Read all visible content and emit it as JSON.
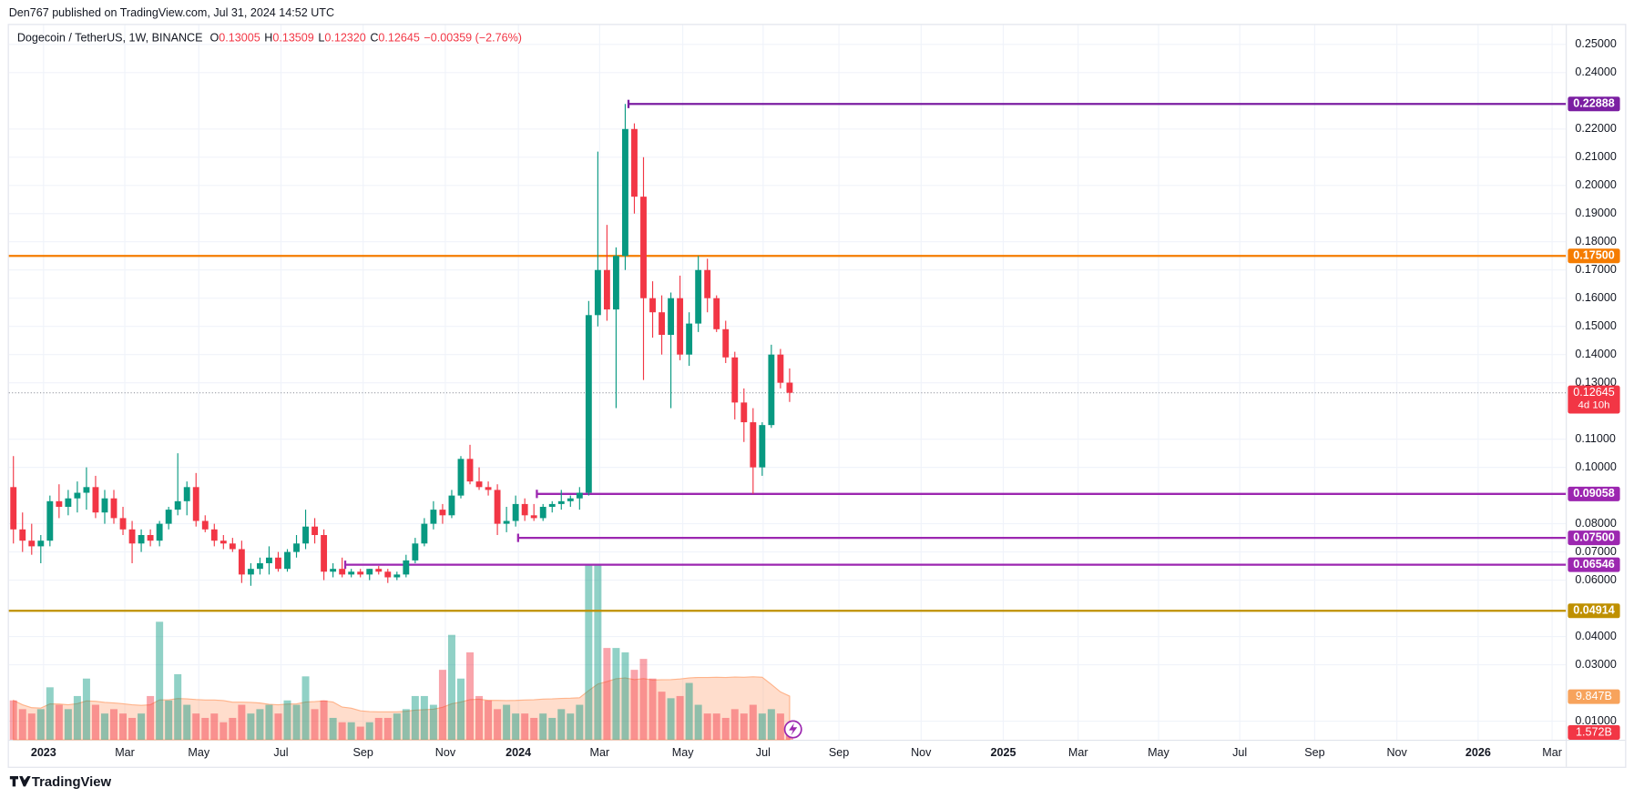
{
  "header": {
    "text": "Den767 published on TradingView.com, Jul 31, 2024 14:52 UTC"
  },
  "footer": {
    "brand": "TradingView"
  },
  "chart_data": {
    "type": "candlestick",
    "symbol": "Dogecoin / TetherUS, 1W, BINANCE",
    "legend": [
      {
        "label": "O",
        "value": "0.13005"
      },
      {
        "label": "H",
        "value": "0.13509"
      },
      {
        "label": "L",
        "value": "0.12320"
      },
      {
        "label": "C",
        "value": "0.12645"
      }
    ],
    "change": "−0.00359 (−2.76%)",
    "up_color": "#089981",
    "down_color": "#f23645",
    "open": [
      0.093,
      0.078,
      0.074,
      0.072,
      0.074,
      0.088,
      0.086,
      0.089,
      0.091,
      0.093,
      0.084,
      0.089,
      0.082,
      0.078,
      0.073,
      0.076,
      0.074,
      0.08,
      0.085,
      0.088,
      0.093,
      0.081,
      0.078,
      0.074,
      0.073,
      0.071,
      0.062,
      0.064,
      0.066,
      0.068,
      0.064,
      0.07,
      0.073,
      0.079,
      0.076,
      0.063,
      0.064,
      0.062,
      0.063,
      0.062,
      0.064,
      0.063,
      0.061,
      0.062,
      0.067,
      0.073,
      0.08,
      0.085,
      0.083,
      0.09,
      0.103,
      0.095,
      0.093,
      0.092,
      0.08,
      0.081,
      0.087,
      0.083,
      0.082,
      0.086,
      0.087,
      0.088,
      0.089,
      0.091,
      0.154,
      0.17,
      0.156,
      0.175,
      0.22,
      0.196,
      0.16,
      0.155,
      0.147,
      0.16,
      0.14,
      0.151,
      0.17,
      0.16,
      0.149,
      0.139,
      0.123,
      0.116,
      0.1,
      0.115,
      0.14,
      0.13005
    ],
    "high": [
      0.104,
      0.084,
      0.08,
      0.076,
      0.09,
      0.094,
      0.092,
      0.095,
      0.1,
      0.097,
      0.092,
      0.092,
      0.086,
      0.081,
      0.078,
      0.078,
      0.081,
      0.086,
      0.105,
      0.095,
      0.098,
      0.083,
      0.08,
      0.076,
      0.075,
      0.074,
      0.066,
      0.068,
      0.072,
      0.07,
      0.071,
      0.076,
      0.085,
      0.082,
      0.078,
      0.066,
      0.068,
      0.064,
      0.064,
      0.064,
      0.065,
      0.064,
      0.063,
      0.069,
      0.075,
      0.082,
      0.088,
      0.087,
      0.092,
      0.104,
      0.108,
      0.1,
      0.095,
      0.094,
      0.086,
      0.09,
      0.089,
      0.087,
      0.087,
      0.088,
      0.092,
      0.09,
      0.093,
      0.159,
      0.212,
      0.186,
      0.178,
      0.22888,
      0.222,
      0.21,
      0.166,
      0.161,
      0.162,
      0.168,
      0.155,
      0.175,
      0.174,
      0.161,
      0.152,
      0.141,
      0.128,
      0.121,
      0.116,
      0.1435,
      0.142,
      0.13509
    ],
    "low": [
      0.073,
      0.07,
      0.069,
      0.066,
      0.072,
      0.082,
      0.083,
      0.084,
      0.085,
      0.082,
      0.08,
      0.08,
      0.076,
      0.066,
      0.07,
      0.072,
      0.072,
      0.078,
      0.083,
      0.083,
      0.079,
      0.077,
      0.072,
      0.071,
      0.07,
      0.059,
      0.058,
      0.062,
      0.062,
      0.063,
      0.063,
      0.068,
      0.071,
      0.073,
      0.06,
      0.061,
      0.061,
      0.061,
      0.061,
      0.06,
      0.062,
      0.059,
      0.06,
      0.061,
      0.066,
      0.072,
      0.078,
      0.08,
      0.082,
      0.089,
      0.094,
      0.092,
      0.09,
      0.076,
      0.077,
      0.079,
      0.081,
      0.081,
      0.081,
      0.084,
      0.085,
      0.086,
      0.085,
      0.09,
      0.15,
      0.152,
      0.121,
      0.17,
      0.19,
      0.131,
      0.146,
      0.14,
      0.121,
      0.138,
      0.136,
      0.148,
      0.155,
      0.148,
      0.137,
      0.117,
      0.109,
      0.0906,
      0.097,
      0.114,
      0.128,
      0.1232
    ],
    "close": [
      0.078,
      0.074,
      0.072,
      0.074,
      0.088,
      0.086,
      0.089,
      0.091,
      0.093,
      0.084,
      0.089,
      0.082,
      0.078,
      0.073,
      0.076,
      0.074,
      0.08,
      0.085,
      0.088,
      0.093,
      0.081,
      0.078,
      0.074,
      0.073,
      0.071,
      0.062,
      0.064,
      0.066,
      0.068,
      0.064,
      0.07,
      0.073,
      0.079,
      0.076,
      0.063,
      0.064,
      0.062,
      0.063,
      0.062,
      0.064,
      0.063,
      0.061,
      0.062,
      0.067,
      0.073,
      0.08,
      0.085,
      0.083,
      0.09,
      0.103,
      0.095,
      0.093,
      0.092,
      0.08,
      0.081,
      0.087,
      0.083,
      0.082,
      0.086,
      0.087,
      0.088,
      0.089,
      0.091,
      0.154,
      0.17,
      0.156,
      0.175,
      0.22,
      0.196,
      0.16,
      0.155,
      0.147,
      0.16,
      0.14,
      0.151,
      0.17,
      0.16,
      0.149,
      0.139,
      0.123,
      0.116,
      0.1,
      0.115,
      0.14,
      0.13,
      0.12645
    ],
    "volume": [
      9,
      7,
      6,
      7,
      12,
      8,
      7,
      10,
      14,
      8,
      6,
      7,
      6,
      5,
      6,
      10,
      27,
      9,
      15,
      8,
      6,
      5,
      6,
      4,
      5,
      8,
      6,
      7,
      8,
      6,
      9,
      8,
      14.5,
      7,
      9,
      5,
      4,
      4,
      3,
      4,
      5,
      5,
      6,
      7,
      10,
      10,
      8,
      16,
      24,
      14,
      20,
      10,
      9,
      7,
      8,
      6,
      6,
      5,
      6,
      5,
      7,
      6,
      8,
      40,
      40,
      21,
      21,
      20,
      16,
      18.5,
      14,
      11,
      9.5,
      10,
      13,
      8,
      6,
      6,
      5,
      7,
      6,
      8,
      6,
      7,
      6,
      1.572
    ],
    "xlim": [
      -0.5,
      170
    ],
    "xticks": [
      {
        "value": 3.3,
        "label": "2023"
      },
      {
        "value": 12.2,
        "label": "Mar"
      },
      {
        "value": 20.3,
        "label": "May"
      },
      {
        "value": 29.3,
        "label": "Jul"
      },
      {
        "value": 38.3,
        "label": "Sep"
      },
      {
        "value": 47.3,
        "label": "Nov"
      },
      {
        "value": 55.3,
        "label": "2024"
      },
      {
        "value": 64.2,
        "label": "Mar"
      },
      {
        "value": 73.3,
        "label": "May"
      },
      {
        "value": 82.1,
        "label": "Jul"
      },
      {
        "value": 90.4,
        "label": "Sep"
      },
      {
        "value": 99.4,
        "label": "Nov"
      },
      {
        "value": 108.4,
        "label": "2025"
      },
      {
        "value": 116.6,
        "label": "Mar"
      },
      {
        "value": 125.4,
        "label": "May"
      },
      {
        "value": 134.3,
        "label": "Jul"
      },
      {
        "value": 142.5,
        "label": "Sep"
      },
      {
        "value": 151.5,
        "label": "Nov"
      },
      {
        "value": 160.4,
        "label": "2026"
      },
      {
        "value": 168.5,
        "label": "Mar"
      }
    ],
    "ylim": [
      0.0034,
      0.2569
    ],
    "yticks": [
      {
        "value": 0.25,
        "label": "0.25000"
      },
      {
        "value": 0.24,
        "label": "0.24000"
      },
      {
        "value": 0.22,
        "label": "0.22000"
      },
      {
        "value": 0.21,
        "label": "0.21000"
      },
      {
        "value": 0.2,
        "label": "0.20000"
      },
      {
        "value": 0.19,
        "label": "0.19000"
      },
      {
        "value": 0.18,
        "label": "0.18000"
      },
      {
        "value": 0.17,
        "label": "0.17000"
      },
      {
        "value": 0.16,
        "label": "0.16000"
      },
      {
        "value": 0.15,
        "label": "0.15000"
      },
      {
        "value": 0.14,
        "label": "0.14000"
      },
      {
        "value": 0.13,
        "label": "0.13000"
      },
      {
        "value": 0.11,
        "label": "0.11000"
      },
      {
        "value": 0.1,
        "label": "0.10000"
      },
      {
        "value": 0.08,
        "label": "0.08000"
      },
      {
        "value": 0.07,
        "label": "0.07000"
      },
      {
        "value": 0.06,
        "label": "0.06000"
      },
      {
        "value": 0.04,
        "label": "0.04000"
      },
      {
        "value": 0.03,
        "label": "0.03000"
      },
      {
        "value": 0.01,
        "label": "0.01000"
      }
    ],
    "grid": true,
    "levels": [
      {
        "value": 0.22888,
        "label": "0.22888",
        "color": "#7b1fa2"
      },
      {
        "value": 0.175,
        "label": "0.17500",
        "color": "#f57c00"
      },
      {
        "value": 0.09058,
        "label": "0.09058",
        "color": "#9c27b0"
      },
      {
        "value": 0.075,
        "label": "0.07500",
        "color": "#9c27b0"
      },
      {
        "value": 0.06546,
        "label": "0.06546",
        "color": "#9c27b0"
      },
      {
        "value": 0.04914,
        "label": "0.04914",
        "color": "#bf9000"
      }
    ],
    "last_price": {
      "value": 0.12645,
      "label": "0.12645",
      "countdown": "4d 10h",
      "color": "#f23645"
    },
    "volume_ma_label": {
      "value": 9.847,
      "label": "9.847B",
      "color": "#f7a35c"
    },
    "volume_last_label": {
      "value": 1.572,
      "label": "1.572B",
      "color": "#f23645"
    }
  }
}
